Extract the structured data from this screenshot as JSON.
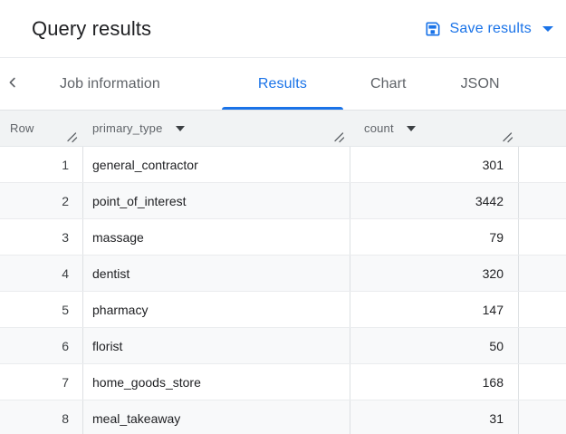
{
  "header": {
    "title": "Query results",
    "save_button_label": "Save results"
  },
  "tabs": {
    "items": [
      {
        "label": "Job information",
        "active": false
      },
      {
        "label": "Results",
        "active": true
      },
      {
        "label": "Chart",
        "active": false
      },
      {
        "label": "JSON",
        "active": false
      }
    ]
  },
  "table": {
    "columns": [
      {
        "label": "Row",
        "sortable": false,
        "resizable": true
      },
      {
        "label": "primary_type",
        "sortable": true,
        "resizable": true
      },
      {
        "label": "count",
        "sortable": true,
        "resizable": true
      }
    ],
    "rows": [
      {
        "row": "1",
        "primary_type": "general_contractor",
        "count": "301"
      },
      {
        "row": "2",
        "primary_type": "point_of_interest",
        "count": "3442"
      },
      {
        "row": "3",
        "primary_type": "massage",
        "count": "79"
      },
      {
        "row": "4",
        "primary_type": "dentist",
        "count": "320"
      },
      {
        "row": "5",
        "primary_type": "pharmacy",
        "count": "147"
      },
      {
        "row": "6",
        "primary_type": "florist",
        "count": "50"
      },
      {
        "row": "7",
        "primary_type": "home_goods_store",
        "count": "168"
      },
      {
        "row": "8",
        "primary_type": "meal_takeaway",
        "count": "31"
      }
    ]
  },
  "colors": {
    "accent_blue": "#1a73e8",
    "tab_inactive_gray": "#5f6368",
    "table_header_bg": "#f1f3f4",
    "row_stripe_bg": "#f8f9fa",
    "cell_text": "#202124",
    "border_light": "#dde0e3"
  }
}
